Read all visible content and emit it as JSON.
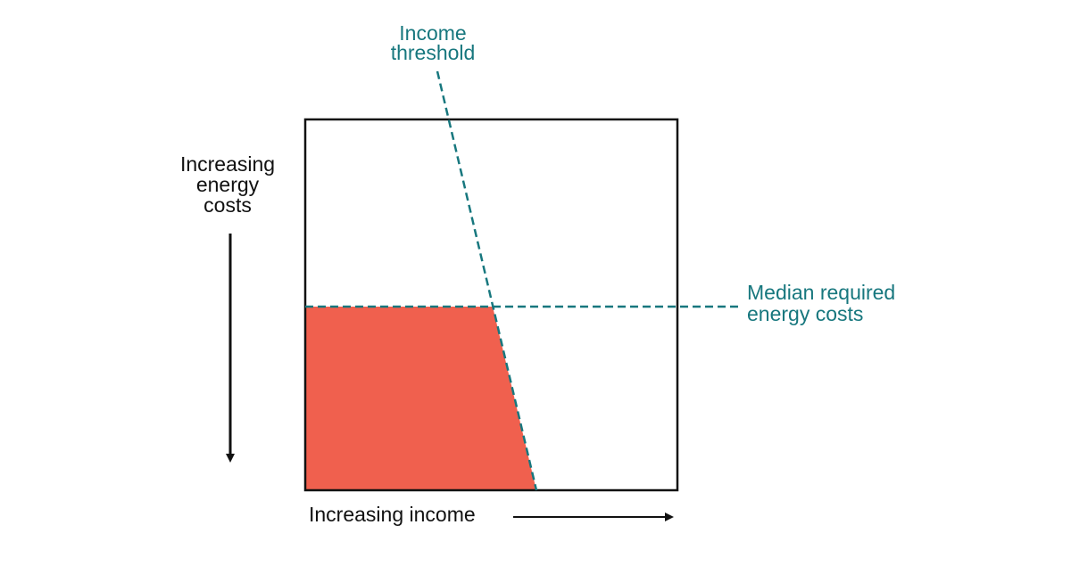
{
  "labels": {
    "income_threshold": [
      "Income",
      "threshold"
    ],
    "energy_costs_axis": [
      "Increasing",
      "energy",
      "costs"
    ],
    "median_energy_costs": [
      "Median required",
      "energy costs"
    ],
    "income_axis": "Increasing income"
  }
}
